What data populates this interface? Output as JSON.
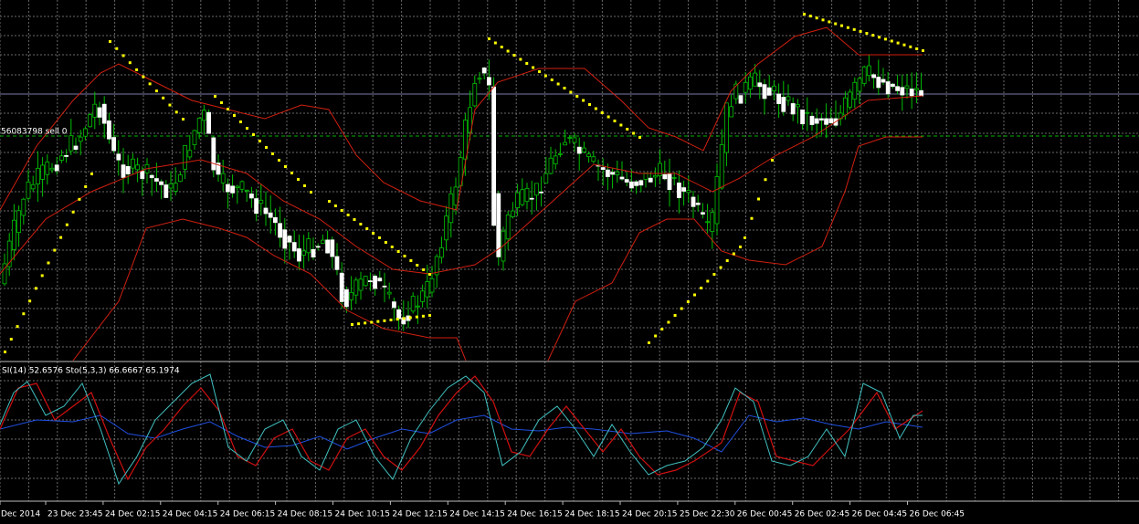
{
  "order_label": "56083798 sell 0",
  "indicator_label": "SI(14) 52.6576  Sto(5,3,3) 66.6667 65.1974",
  "time_axis": [
    "Dec 2014",
    "23 Dec 23:45",
    "24 Dec 02:15",
    "24 Dec 04:15",
    "24 Dec 06:15",
    "24 Dec 08:15",
    "24 Dec 10:15",
    "24 Dec 12:15",
    "24 Dec 14:15",
    "24 Dec 16:15",
    "24 Dec 18:15",
    "24 Dec 20:15",
    "25 Dec 22:30",
    "26 Dec 00:45",
    "26 Dec 02:45",
    "26 Dec 04:45",
    "26 Dec 06:45"
  ]
}
